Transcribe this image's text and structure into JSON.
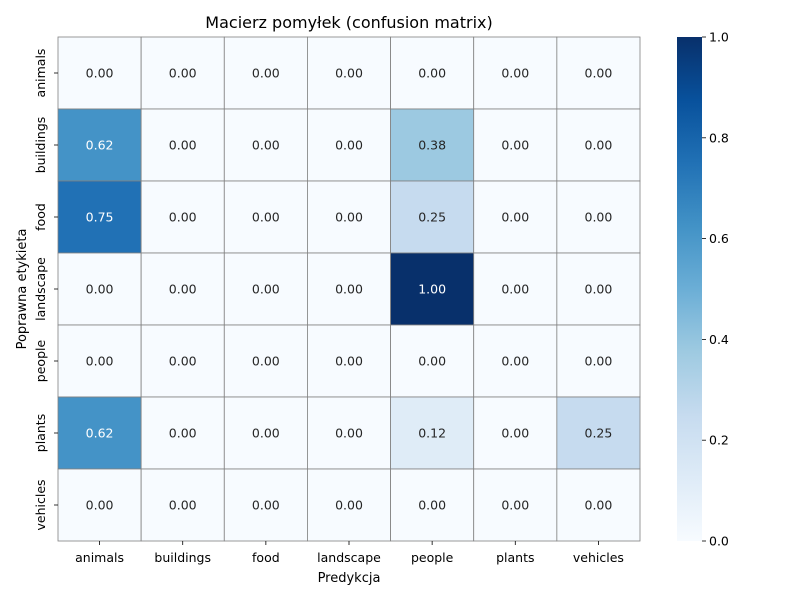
{
  "chart_data": {
    "type": "heatmap",
    "title": "Macierz pomyłek (confusion matrix)",
    "xlabel": "Predykcja",
    "ylabel": "Poprawna etykieta",
    "x_categories": [
      "animals",
      "buildings",
      "food",
      "landscape",
      "people",
      "plants",
      "vehicles"
    ],
    "y_categories": [
      "animals",
      "buildings",
      "food",
      "landscape",
      "people",
      "plants",
      "vehicles"
    ],
    "values": [
      [
        0.0,
        0.0,
        0.0,
        0.0,
        0.0,
        0.0,
        0.0
      ],
      [
        0.62,
        0.0,
        0.0,
        0.0,
        0.38,
        0.0,
        0.0
      ],
      [
        0.75,
        0.0,
        0.0,
        0.0,
        0.25,
        0.0,
        0.0
      ],
      [
        0.0,
        0.0,
        0.0,
        0.0,
        1.0,
        0.0,
        0.0
      ],
      [
        0.0,
        0.0,
        0.0,
        0.0,
        0.0,
        0.0,
        0.0
      ],
      [
        0.62,
        0.0,
        0.0,
        0.0,
        0.12,
        0.0,
        0.25
      ],
      [
        0.0,
        0.0,
        0.0,
        0.0,
        0.0,
        0.0,
        0.0
      ]
    ],
    "colormap": "Blues",
    "colorbar": {
      "range": [
        0.0,
        1.0
      ],
      "ticks": [
        "0.0",
        "0.2",
        "0.4",
        "0.6",
        "0.8",
        "1.0"
      ]
    },
    "grid": true
  }
}
